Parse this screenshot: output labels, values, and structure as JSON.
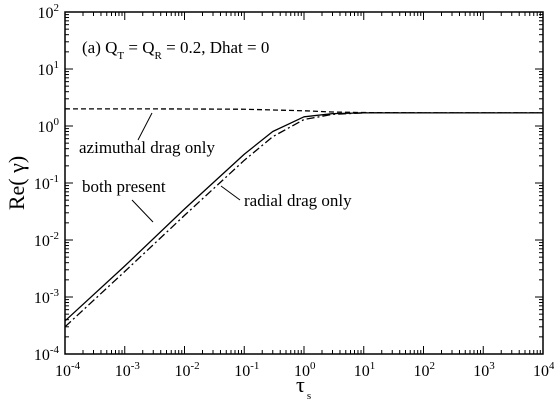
{
  "chart_data": {
    "type": "line",
    "title": "(a) Q_T = Q_R = 0.2, Dhat = 0",
    "title_parts": {
      "prefix": "(a) Q",
      "sub1": "T",
      "mid": " = Q",
      "sub2": "R",
      "suffix": " = 0.2, Dhat = 0"
    },
    "xlabel": "τ",
    "xlabel_sub": "s",
    "ylabel": "Re( γ)",
    "xscale": "log",
    "yscale": "log",
    "xlim": [
      0.0001,
      10000
    ],
    "ylim": [
      0.0001,
      100
    ],
    "x_ticks": {
      "base": "10",
      "exponents": [
        "-4",
        "-3",
        "-2",
        "-1",
        "0",
        "1",
        "2",
        "3",
        "4"
      ]
    },
    "y_ticks": {
      "base": "10",
      "exponents": [
        "-4",
        "-3",
        "-2",
        "-1",
        "0",
        "1",
        "2"
      ]
    },
    "grid": false,
    "series": [
      {
        "name": "both present",
        "style": "solid",
        "color": "#000000",
        "x": [
          0.0001,
          0.001,
          0.01,
          0.1,
          0.3,
          1,
          3,
          10,
          100,
          1000,
          10000
        ],
        "y": [
          0.00038,
          0.0035,
          0.035,
          0.32,
          0.8,
          1.45,
          1.65,
          1.7,
          1.7,
          1.7,
          1.7
        ]
      },
      {
        "name": "radial drag only",
        "style": "dashdot",
        "color": "#000000",
        "x": [
          0.0001,
          0.001,
          0.01,
          0.1,
          0.3,
          1,
          3,
          10,
          100,
          1000,
          10000
        ],
        "y": [
          0.0003,
          0.0028,
          0.027,
          0.25,
          0.65,
          1.3,
          1.6,
          1.7,
          1.7,
          1.7,
          1.7
        ]
      },
      {
        "name": "azimuthal drag only",
        "style": "dashed",
        "color": "#000000",
        "x": [
          0.0001,
          0.001,
          0.01,
          0.1,
          1,
          3,
          10,
          100,
          1000,
          10000
        ],
        "y": [
          2.0,
          2.0,
          1.99,
          1.97,
          1.85,
          1.76,
          1.72,
          1.7,
          1.7,
          1.7
        ]
      }
    ],
    "annotations": {
      "azimuthal": "azimuthal drag only",
      "both": "both present",
      "radial": "radial drag only"
    }
  }
}
